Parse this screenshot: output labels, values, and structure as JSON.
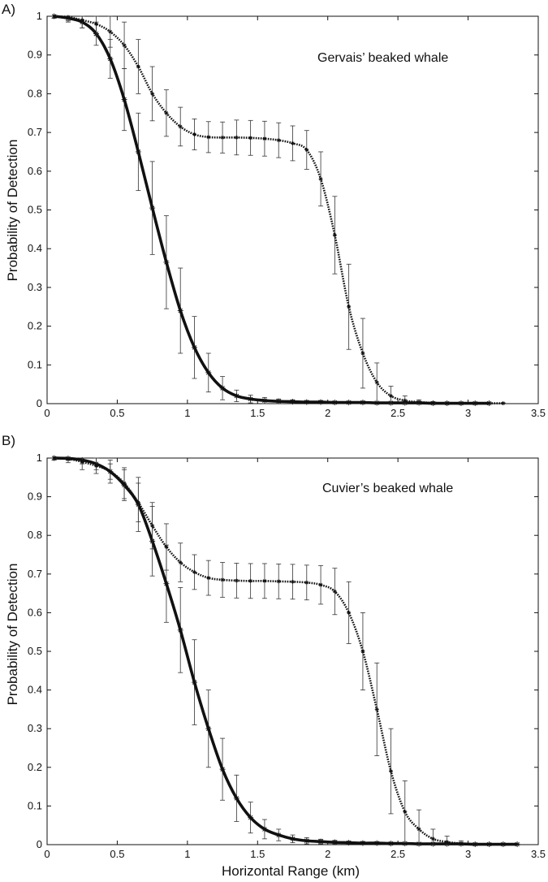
{
  "chart_data": [
    {
      "type": "line",
      "panel_label": "A)",
      "annotation": "Gervais’ beaked whale",
      "xlabel": "",
      "ylabel": "Probability of Detection",
      "xlim": [
        0,
        3.5
      ],
      "ylim": [
        0,
        1
      ],
      "xticks": [
        "0",
        "0.5",
        "1",
        "1.5",
        "2",
        "2.5",
        "3",
        "3.5"
      ],
      "yticks": [
        "0",
        "0.1",
        "0.2",
        "0.3",
        "0.4",
        "0.5",
        "0.6",
        "0.7",
        "0.8",
        "0.9",
        "1"
      ],
      "grid": false,
      "legend": "none",
      "series": [
        {
          "style": "solid",
          "x": [
            0.05,
            0.15,
            0.25,
            0.35,
            0.45,
            0.55,
            0.65,
            0.75,
            0.85,
            0.95,
            1.05,
            1.15,
            1.25,
            1.35,
            1.45,
            1.55,
            1.65,
            1.75,
            1.85,
            1.95,
            2.05,
            2.15,
            2.25,
            2.35,
            2.45,
            2.55,
            2.65,
            2.75,
            2.85,
            2.95,
            3.05,
            3.15
          ],
          "y": [
            1.0,
            0.995,
            0.985,
            0.955,
            0.89,
            0.785,
            0.65,
            0.505,
            0.365,
            0.24,
            0.145,
            0.08,
            0.04,
            0.02,
            0.012,
            0.008,
            0.006,
            0.005,
            0.004,
            0.004,
            0.003,
            0.003,
            0.003,
            0.002,
            0.002,
            0.002,
            0.002,
            0.001,
            0.001,
            0.001,
            0.001,
            0.001
          ],
          "err": [
            0.005,
            0.01,
            0.015,
            0.03,
            0.05,
            0.08,
            0.1,
            0.12,
            0.12,
            0.11,
            0.08,
            0.05,
            0.03,
            0.015,
            0.01,
            0.008,
            0.006,
            0.005,
            0.004,
            0.004,
            0.003,
            0.003,
            0.003,
            0.002,
            0.002,
            0.002,
            0.002,
            0.001,
            0.001,
            0.001,
            0.001,
            0.001
          ]
        },
        {
          "style": "dotted",
          "x": [
            0.05,
            0.15,
            0.25,
            0.35,
            0.45,
            0.55,
            0.65,
            0.75,
            0.85,
            0.95,
            1.05,
            1.15,
            1.25,
            1.35,
            1.45,
            1.55,
            1.65,
            1.75,
            1.85,
            1.95,
            2.05,
            2.15,
            2.25,
            2.35,
            2.45,
            2.55,
            2.65,
            2.75,
            2.85,
            2.95,
            3.05,
            3.15,
            3.25
          ],
          "y": [
            1.0,
            0.998,
            0.99,
            0.98,
            0.96,
            0.925,
            0.87,
            0.8,
            0.75,
            0.715,
            0.695,
            0.688,
            0.687,
            0.687,
            0.686,
            0.684,
            0.68,
            0.672,
            0.655,
            0.58,
            0.435,
            0.25,
            0.13,
            0.055,
            0.02,
            0.008,
            0.004,
            0.002,
            0.001,
            0.001,
            0.001,
            0.001,
            0.001
          ],
          "err": [
            0.005,
            0.01,
            0.02,
            0.03,
            0.04,
            0.06,
            0.07,
            0.07,
            0.06,
            0.05,
            0.04,
            0.04,
            0.04,
            0.045,
            0.045,
            0.045,
            0.045,
            0.045,
            0.05,
            0.07,
            0.1,
            0.11,
            0.09,
            0.05,
            0.025,
            0.012,
            0.006,
            0.003,
            0.002,
            0.001,
            0.001,
            0.001,
            0.001
          ]
        }
      ]
    },
    {
      "type": "line",
      "panel_label": "B)",
      "annotation": "Cuvier’s beaked whale",
      "xlabel": "Horizontal Range (km)",
      "ylabel": "Probability of Detection",
      "xlim": [
        0,
        3.5
      ],
      "ylim": [
        0,
        1
      ],
      "xticks": [
        "0",
        "0.5",
        "1",
        "1.5",
        "2",
        "2.5",
        "3",
        "3.5"
      ],
      "yticks": [
        "0",
        "0.1",
        "0.2",
        "0.3",
        "0.4",
        "0.5",
        "0.6",
        "0.7",
        "0.8",
        "0.9",
        "1"
      ],
      "grid": false,
      "legend": "none",
      "series": [
        {
          "style": "solid",
          "x": [
            0.05,
            0.15,
            0.25,
            0.35,
            0.45,
            0.55,
            0.65,
            0.75,
            0.85,
            0.95,
            1.05,
            1.15,
            1.25,
            1.35,
            1.45,
            1.55,
            1.65,
            1.75,
            1.85,
            1.95,
            2.05,
            2.15,
            2.25,
            2.35,
            2.45,
            2.55,
            2.65,
            2.75,
            2.85,
            2.95,
            3.05,
            3.15,
            3.25,
            3.35
          ],
          "y": [
            1.0,
            0.999,
            0.995,
            0.985,
            0.965,
            0.93,
            0.88,
            0.785,
            0.675,
            0.555,
            0.42,
            0.3,
            0.195,
            0.12,
            0.07,
            0.04,
            0.025,
            0.015,
            0.01,
            0.008,
            0.006,
            0.005,
            0.004,
            0.004,
            0.003,
            0.003,
            0.002,
            0.002,
            0.002,
            0.002,
            0.001,
            0.001,
            0.001,
            0.001
          ],
          "err": [
            0.005,
            0.005,
            0.01,
            0.015,
            0.02,
            0.04,
            0.07,
            0.09,
            0.1,
            0.11,
            0.11,
            0.1,
            0.08,
            0.06,
            0.04,
            0.025,
            0.015,
            0.01,
            0.008,
            0.006,
            0.005,
            0.004,
            0.004,
            0.003,
            0.003,
            0.002,
            0.002,
            0.002,
            0.002,
            0.001,
            0.001,
            0.001,
            0.001,
            0.001
          ]
        },
        {
          "style": "dotted",
          "x": [
            0.05,
            0.15,
            0.25,
            0.35,
            0.45,
            0.55,
            0.65,
            0.75,
            0.85,
            0.95,
            1.05,
            1.15,
            1.25,
            1.35,
            1.45,
            1.55,
            1.65,
            1.75,
            1.85,
            1.95,
            2.05,
            2.15,
            2.25,
            2.35,
            2.45,
            2.55,
            2.65,
            2.75,
            2.85,
            2.95,
            3.05
          ],
          "y": [
            1.0,
            0.998,
            0.99,
            0.98,
            0.965,
            0.935,
            0.885,
            0.825,
            0.77,
            0.73,
            0.705,
            0.69,
            0.685,
            0.683,
            0.682,
            0.682,
            0.681,
            0.68,
            0.678,
            0.672,
            0.655,
            0.6,
            0.5,
            0.35,
            0.19,
            0.085,
            0.04,
            0.015,
            0.007,
            0.003,
            0.001
          ],
          "err": [
            0.005,
            0.01,
            0.02,
            0.02,
            0.03,
            0.04,
            0.05,
            0.06,
            0.06,
            0.05,
            0.045,
            0.045,
            0.045,
            0.045,
            0.045,
            0.045,
            0.045,
            0.045,
            0.045,
            0.05,
            0.06,
            0.08,
            0.1,
            0.12,
            0.11,
            0.08,
            0.05,
            0.025,
            0.015,
            0.007,
            0.003
          ]
        }
      ]
    }
  ]
}
